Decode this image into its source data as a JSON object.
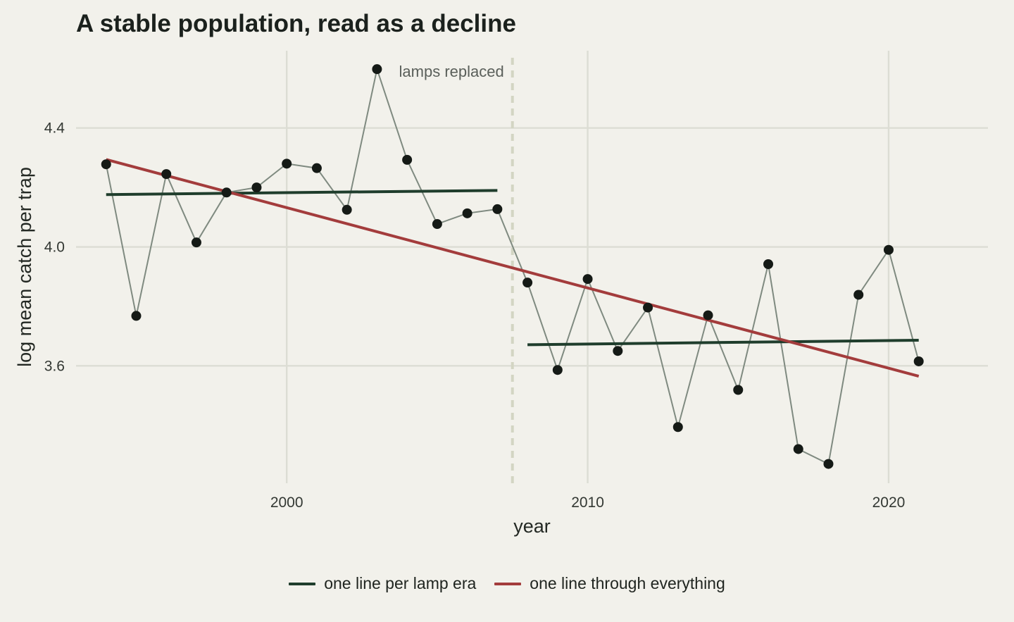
{
  "title": "A stable population, read as a decline",
  "legend": {
    "items": [
      {
        "label": "one line per lamp era",
        "color": "#1f3d2c"
      },
      {
        "label": "one line through everything",
        "color": "#a33c3c"
      }
    ]
  },
  "chart_data": {
    "type": "line",
    "title": "A stable population, read as a decline",
    "xlabel": "year",
    "ylabel": "log mean catch per trap",
    "xlim": [
      1993.0,
      2023.3
    ],
    "ylim": [
      3.205,
      4.66
    ],
    "xticks": [
      2000,
      2010,
      2020
    ],
    "yticks": [
      3.6,
      4.0,
      4.4
    ],
    "ytick_labels": [
      "3.6",
      "4.0",
      "4.4"
    ],
    "grid": true,
    "legend_position": "bottom",
    "annotation": {
      "text": "lamps replaced",
      "x": 2007.5
    },
    "observed": {
      "color": "#7f8a80",
      "marker_color": "#151a16",
      "x": [
        1994,
        1995,
        1996,
        1997,
        1998,
        1999,
        2000,
        2001,
        2002,
        2003,
        2004,
        2005,
        2006,
        2007,
        2008,
        2009,
        2010,
        2011,
        2012,
        2013,
        2014,
        2015,
        2016,
        2017,
        2018,
        2019,
        2020,
        2021
      ],
      "y": [
        4.278,
        3.768,
        4.245,
        4.015,
        4.183,
        4.2,
        4.28,
        4.265,
        4.125,
        4.598,
        4.293,
        4.077,
        4.113,
        4.127,
        3.88,
        3.586,
        3.892,
        3.65,
        3.796,
        3.394,
        3.77,
        3.519,
        3.942,
        3.32,
        3.27,
        3.839,
        3.99,
        3.615
      ]
    },
    "series": [
      {
        "name": "one line per lamp era",
        "color": "#1f3d2c",
        "segments": [
          {
            "x": [
              1994,
              2007
            ],
            "y": [
              4.176,
              4.19
            ]
          },
          {
            "x": [
              2008,
              2021
            ],
            "y": [
              3.671,
              3.686
            ]
          }
        ]
      },
      {
        "name": "one line through everything",
        "color": "#a33c3c",
        "segments": [
          {
            "x": [
              1994,
              2021
            ],
            "y": [
              4.294,
              3.565
            ]
          }
        ]
      }
    ]
  }
}
